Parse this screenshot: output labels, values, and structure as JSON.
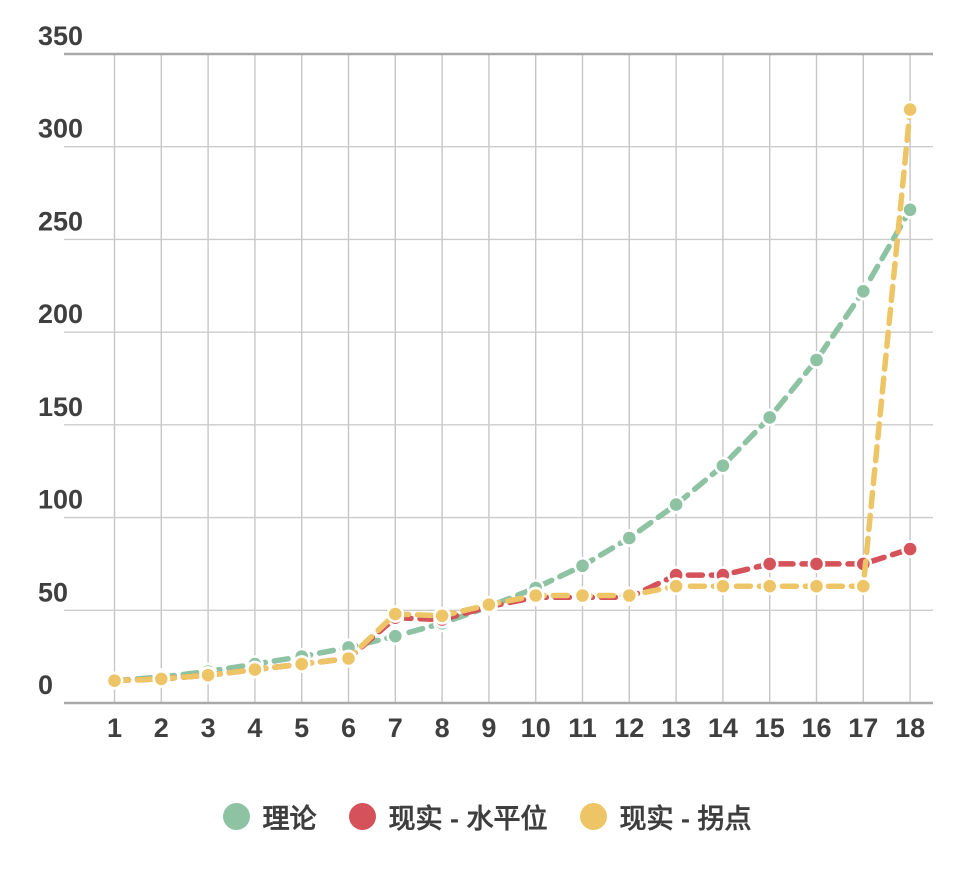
{
  "chart_data": {
    "type": "line",
    "title": "",
    "xlabel": "",
    "ylabel": "",
    "x": [
      1,
      2,
      3,
      4,
      5,
      6,
      7,
      8,
      9,
      10,
      11,
      12,
      13,
      14,
      15,
      16,
      17,
      18
    ],
    "y_ticks": [
      0,
      50,
      100,
      150,
      200,
      250,
      300,
      350
    ],
    "ylim": [
      0,
      350
    ],
    "grid": true,
    "legend_position": "bottom",
    "line_style": "dashed",
    "marker": "circle",
    "series": [
      {
        "name": "理论",
        "color": "#8DC3A3",
        "values": [
          12,
          14,
          17,
          21,
          25,
          30,
          36,
          43,
          52,
          62,
          74,
          89,
          107,
          128,
          154,
          185,
          222,
          266
        ]
      },
      {
        "name": "现实 - 水平位",
        "color": "#D5525A",
        "values": [
          12,
          13,
          15,
          18,
          21,
          24,
          46,
          45,
          52,
          57,
          57,
          57,
          69,
          69,
          75,
          75,
          75,
          83
        ]
      },
      {
        "name": "现实 - 拐点",
        "color": "#EEC566",
        "values": [
          12,
          13,
          15,
          18,
          21,
          24,
          48,
          47,
          53,
          58,
          58,
          58,
          63,
          63,
          63,
          63,
          63,
          320
        ]
      }
    ],
    "colors": {
      "grid": "#cbcbcb",
      "frame": "#a9a9a9",
      "tick_text": "#3f3f3f",
      "background": "#ffffff"
    }
  }
}
